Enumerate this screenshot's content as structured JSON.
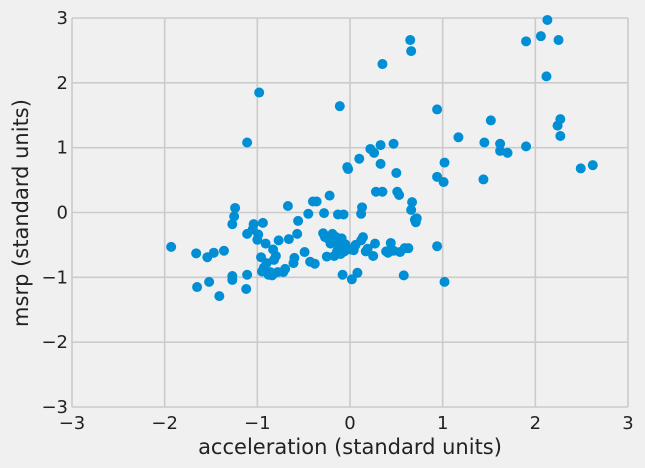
{
  "chart_data": {
    "type": "scatter",
    "title": "",
    "xlabel": "acceleration (standard units)",
    "ylabel": "msrp (standard units)",
    "xlim": [
      -3,
      3
    ],
    "ylim": [
      -3,
      3
    ],
    "x_ticks": [
      "−3",
      "−2",
      "−1",
      "0",
      "1",
      "2",
      "3"
    ],
    "y_ticks": [
      "−3",
      "−2",
      "−1",
      "0",
      "1",
      "2",
      "3"
    ],
    "grid": true,
    "marker_color": "#008fd5",
    "background_color": "#f0f0f0",
    "points": [
      {
        "x": -1.93,
        "y": -0.53
      },
      {
        "x": -1.66,
        "y": -0.63
      },
      {
        "x": -1.65,
        "y": -1.15
      },
      {
        "x": -1.54,
        "y": -0.69
      },
      {
        "x": -1.52,
        "y": -1.07
      },
      {
        "x": -1.47,
        "y": -0.62
      },
      {
        "x": -1.41,
        "y": -1.29
      },
      {
        "x": -1.36,
        "y": -0.59
      },
      {
        "x": -1.27,
        "y": -0.98
      },
      {
        "x": -1.27,
        "y": -1.04
      },
      {
        "x": -1.27,
        "y": -0.18
      },
      {
        "x": -1.25,
        "y": -0.06
      },
      {
        "x": -1.24,
        "y": 0.07
      },
      {
        "x": -1.12,
        "y": -1.18
      },
      {
        "x": -1.11,
        "y": -0.96
      },
      {
        "x": -1.11,
        "y": -0.33
      },
      {
        "x": -1.11,
        "y": 1.08
      },
      {
        "x": -1.05,
        "y": -0.26
      },
      {
        "x": -1.04,
        "y": -0.18
      },
      {
        "x": -1.0,
        "y": -0.42
      },
      {
        "x": -0.99,
        "y": -0.34
      },
      {
        "x": -0.98,
        "y": 1.85
      },
      {
        "x": -0.96,
        "y": -0.69
      },
      {
        "x": -0.95,
        "y": -0.91
      },
      {
        "x": -0.94,
        "y": -0.16
      },
      {
        "x": -0.93,
        "y": -0.85
      },
      {
        "x": -0.91,
        "y": -0.48
      },
      {
        "x": -0.9,
        "y": -0.78
      },
      {
        "x": -0.88,
        "y": -0.96
      },
      {
        "x": -0.86,
        "y": -0.92
      },
      {
        "x": -0.84,
        "y": -0.97
      },
      {
        "x": -0.83,
        "y": -0.57
      },
      {
        "x": -0.82,
        "y": -0.73
      },
      {
        "x": -0.8,
        "y": -0.67
      },
      {
        "x": -0.78,
        "y": -0.92
      },
      {
        "x": -0.77,
        "y": -0.43
      },
      {
        "x": -0.72,
        "y": -0.92
      },
      {
        "x": -0.7,
        "y": -0.87
      },
      {
        "x": -0.67,
        "y": 0.1
      },
      {
        "x": -0.66,
        "y": -0.41
      },
      {
        "x": -0.61,
        "y": -0.78
      },
      {
        "x": -0.6,
        "y": -0.7
      },
      {
        "x": -0.57,
        "y": -0.33
      },
      {
        "x": -0.56,
        "y": -0.13
      },
      {
        "x": -0.49,
        "y": -0.61
      },
      {
        "x": -0.45,
        "y": -0.02
      },
      {
        "x": -0.43,
        "y": -0.76
      },
      {
        "x": -0.4,
        "y": 0.17
      },
      {
        "x": -0.38,
        "y": -0.79
      },
      {
        "x": -0.36,
        "y": 0.17
      },
      {
        "x": -0.29,
        "y": -0.32
      },
      {
        "x": -0.28,
        "y": -0.01
      },
      {
        "x": -0.27,
        "y": -0.38
      },
      {
        "x": -0.25,
        "y": -0.68
      },
      {
        "x": -0.24,
        "y": -0.4
      },
      {
        "x": -0.22,
        "y": 0.26
      },
      {
        "x": -0.21,
        "y": -0.48
      },
      {
        "x": -0.19,
        "y": -0.33
      },
      {
        "x": -0.17,
        "y": -0.67
      },
      {
        "x": -0.16,
        "y": -0.44
      },
      {
        "x": -0.15,
        "y": -0.38
      },
      {
        "x": -0.14,
        "y": -0.6
      },
      {
        "x": -0.13,
        "y": -0.03
      },
      {
        "x": -0.12,
        "y": -0.52
      },
      {
        "x": -0.11,
        "y": 1.64
      },
      {
        "x": -0.1,
        "y": -0.64
      },
      {
        "x": -0.09,
        "y": -0.4
      },
      {
        "x": -0.08,
        "y": -0.96
      },
      {
        "x": -0.07,
        "y": -0.03
      },
      {
        "x": -0.06,
        "y": -0.6
      },
      {
        "x": -0.05,
        "y": -0.49
      },
      {
        "x": -0.03,
        "y": 0.7
      },
      {
        "x": -0.02,
        "y": 0.67
      },
      {
        "x": 0.01,
        "y": -0.57
      },
      {
        "x": 0.02,
        "y": -1.03
      },
      {
        "x": 0.04,
        "y": -0.58
      },
      {
        "x": 0.06,
        "y": -0.5
      },
      {
        "x": 0.08,
        "y": -0.93
      },
      {
        "x": 0.1,
        "y": 0.83
      },
      {
        "x": 0.12,
        "y": -0.43
      },
      {
        "x": 0.12,
        "y": -0.02
      },
      {
        "x": 0.13,
        "y": 0.08
      },
      {
        "x": 0.14,
        "y": -0.38
      },
      {
        "x": 0.17,
        "y": -0.6
      },
      {
        "x": 0.19,
        "y": -0.56
      },
      {
        "x": 0.22,
        "y": 0.98
      },
      {
        "x": 0.25,
        "y": -0.67
      },
      {
        "x": 0.26,
        "y": 0.92
      },
      {
        "x": 0.27,
        "y": -0.48
      },
      {
        "x": 0.28,
        "y": 0.32
      },
      {
        "x": 0.33,
        "y": 1.04
      },
      {
        "x": 0.33,
        "y": 0.75
      },
      {
        "x": 0.35,
        "y": 0.32
      },
      {
        "x": 0.35,
        "y": 2.29
      },
      {
        "x": 0.39,
        "y": -0.6
      },
      {
        "x": 0.41,
        "y": -0.62
      },
      {
        "x": 0.44,
        "y": -0.47
      },
      {
        "x": 0.47,
        "y": 1.06
      },
      {
        "x": 0.47,
        "y": -0.59
      },
      {
        "x": 0.5,
        "y": 0.61
      },
      {
        "x": 0.51,
        "y": 0.32
      },
      {
        "x": 0.53,
        "y": 0.27
      },
      {
        "x": 0.54,
        "y": -0.61
      },
      {
        "x": 0.58,
        "y": -0.97
      },
      {
        "x": 0.59,
        "y": -0.55
      },
      {
        "x": 0.63,
        "y": -0.55
      },
      {
        "x": 0.65,
        "y": 2.66
      },
      {
        "x": 0.66,
        "y": 2.49
      },
      {
        "x": 0.66,
        "y": 0.04
      },
      {
        "x": 0.67,
        "y": 0.16
      },
      {
        "x": 0.7,
        "y": -0.11
      },
      {
        "x": 0.71,
        "y": -0.15
      },
      {
        "x": 0.72,
        "y": -0.09
      },
      {
        "x": 0.94,
        "y": -0.52
      },
      {
        "x": 0.94,
        "y": 1.59
      },
      {
        "x": 0.94,
        "y": 0.55
      },
      {
        "x": 1.01,
        "y": 0.47
      },
      {
        "x": 1.02,
        "y": 0.77
      },
      {
        "x": 1.02,
        "y": -1.07
      },
      {
        "x": 1.17,
        "y": 1.16
      },
      {
        "x": 1.44,
        "y": 0.51
      },
      {
        "x": 1.45,
        "y": 1.08
      },
      {
        "x": 1.52,
        "y": 1.42
      },
      {
        "x": 1.62,
        "y": 1.06
      },
      {
        "x": 1.62,
        "y": 0.95
      },
      {
        "x": 1.7,
        "y": 0.92
      },
      {
        "x": 1.9,
        "y": 1.02
      },
      {
        "x": 1.9,
        "y": 2.64
      },
      {
        "x": 2.06,
        "y": 2.72
      },
      {
        "x": 2.12,
        "y": 2.1
      },
      {
        "x": 2.13,
        "y": 2.97
      },
      {
        "x": 2.24,
        "y": 1.34
      },
      {
        "x": 2.25,
        "y": 2.66
      },
      {
        "x": 2.27,
        "y": 1.18
      },
      {
        "x": 2.27,
        "y": 1.44
      },
      {
        "x": 2.49,
        "y": 0.68
      },
      {
        "x": 2.62,
        "y": 0.73
      }
    ]
  }
}
